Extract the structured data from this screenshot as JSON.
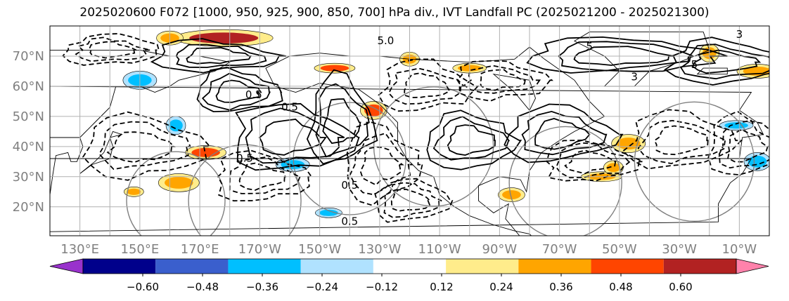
{
  "title": "2025020600 F072 [1000, 950, 925, 900, 850, 700] hPa div., IVT Landfall PC (2025021200 - 2025021300)",
  "chart_data": {
    "type": "heatmap",
    "title": "2025020600 F072 [1000, 950, 925, 900, 850, 700] hPa div., IVT Landfall PC (2025021200 - 2025021300)",
    "projection": "map (lon/lat)",
    "x_tick_labels": [
      "130°E",
      "150°E",
      "170°E",
      "170°W",
      "150°W",
      "130°W",
      "110°W",
      "90°W",
      "70°W",
      "50°W",
      "30°W",
      "10°W"
    ],
    "y_tick_labels": [
      "20°N",
      "30°N",
      "40°N",
      "50°N",
      "60°N",
      "70°N"
    ],
    "grid": true,
    "colorbar": {
      "orientation": "horizontal",
      "extend": "both",
      "ticks": [
        "−0.60",
        "−0.48",
        "−0.36",
        "−0.24",
        "−0.12",
        "0.12",
        "0.24",
        "0.36",
        "0.48",
        "0.60"
      ],
      "colors": [
        "#9932cc",
        "#00008b",
        "#3a5fcd",
        "#00bfff",
        "#b0e2ff",
        "#ffffff",
        "#ffec8b",
        "#ffa500",
        "#ff4500",
        "#b22222",
        "#ff82ab"
      ]
    },
    "contour_labels": [
      "5.0",
      "0.5",
      "0.5",
      "0.5",
      "0.5",
      "0.5",
      "5",
      "3",
      "5",
      "3"
    ],
    "fill_regions": [
      {
        "lon": 178,
        "lat": 76,
        "value": 0.5
      },
      {
        "lon": 160,
        "lat": 76,
        "value": 0.3
      },
      {
        "lon": 150,
        "lat": 62,
        "value": -0.3
      },
      {
        "lon": -145,
        "lat": 66,
        "value": 0.4
      },
      {
        "lon": -120,
        "lat": 69,
        "value": 0.3
      },
      {
        "lon": -132,
        "lat": 52,
        "value": 0.4
      },
      {
        "lon": -100,
        "lat": 66,
        "value": 0.3
      },
      {
        "lon": 172,
        "lat": 38,
        "value": 0.4
      },
      {
        "lon": 162,
        "lat": 47,
        "value": -0.3
      },
      {
        "lon": -147,
        "lat": 18,
        "value": -0.35
      },
      {
        "lon": -159,
        "lat": 34,
        "value": -0.3
      },
      {
        "lon": 163,
        "lat": 28,
        "value": 0.3
      },
      {
        "lon": 148,
        "lat": 25,
        "value": 0.3
      },
      {
        "lon": -86,
        "lat": 24,
        "value": 0.35
      },
      {
        "lon": -47,
        "lat": 41,
        "value": 0.3
      },
      {
        "lon": -56,
        "lat": 30,
        "value": 0.3
      },
      {
        "lon": -52,
        "lat": 33,
        "value": 0.3
      },
      {
        "lon": -4,
        "lat": 35,
        "value": -0.3
      },
      {
        "lon": -11,
        "lat": 47,
        "value": -0.3
      },
      {
        "lon": -4,
        "lat": 65,
        "value": 0.3
      },
      {
        "lon": -20,
        "lat": 71,
        "value": 0.3
      }
    ]
  }
}
